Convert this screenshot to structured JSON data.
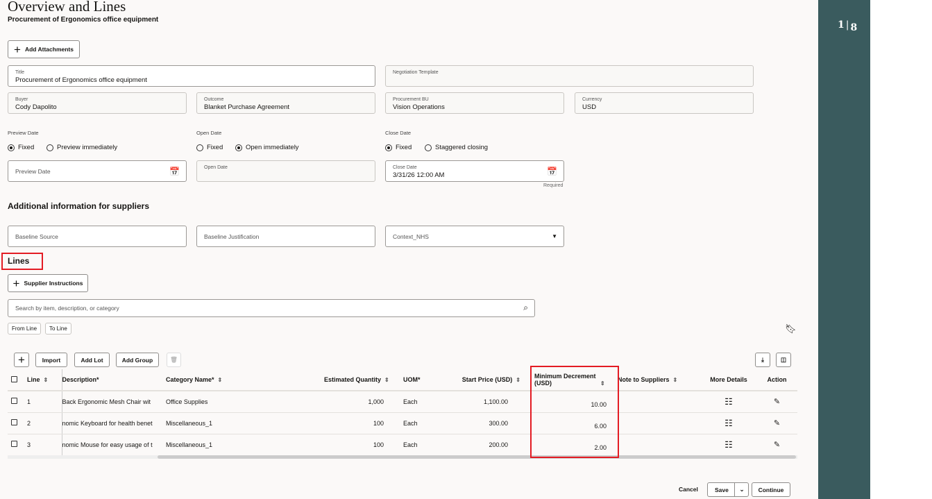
{
  "header": {
    "title": "Overview and Lines",
    "subtitle": "Procurement of Ergonomics office equipment"
  },
  "buttons": {
    "add_attachments": "Add Attachments",
    "supplier_instructions": "Supplier Instructions",
    "from_line": "From Line",
    "to_line": "To Line",
    "import": "Import",
    "add_lot": "Add Lot",
    "add_group": "Add Group",
    "cancel": "Cancel",
    "save": "Save",
    "continue": "Continue"
  },
  "fields": {
    "title": {
      "label": "Title",
      "value": "Procurement of Ergonomics office equipment"
    },
    "negotiation_template": {
      "label": "Negotiation Template",
      "value": ""
    },
    "buyer": {
      "label": "Buyer",
      "value": "Cody Dapolito"
    },
    "outcome": {
      "label": "Outcome",
      "value": "Blanket Purchase Agreement"
    },
    "procurement_bu": {
      "label": "Procurement BU",
      "value": "Vision Operations"
    },
    "currency": {
      "label": "Currency",
      "value": "USD"
    }
  },
  "dates": {
    "preview": {
      "label": "Preview Date",
      "options": [
        "Fixed",
        "Preview immediately"
      ],
      "selected": "Fixed",
      "field_placeholder": "Preview Date"
    },
    "open": {
      "label": "Open Date",
      "options": [
        "Fixed",
        "Open immediately"
      ],
      "selected": "Open immediately",
      "field_label": "Open Date"
    },
    "close": {
      "label": "Close Date",
      "options": [
        "Fixed",
        "Staggered closing"
      ],
      "selected": "Fixed",
      "field_label": "Close Date",
      "value": "3/31/26 12:00 AM",
      "helper": "Required"
    }
  },
  "additional": {
    "heading": "Additional information for suppliers",
    "baseline_source": "Baseline Source",
    "baseline_justification": "Baseline Justification",
    "context": "Context_NHS"
  },
  "lines": {
    "heading": "Lines",
    "search_placeholder": "Search by item, description, or category",
    "columns": [
      "Line",
      "Description*",
      "Category Name*",
      "Estimated Quantity",
      "UOM*",
      "Start Price (USD)",
      "Minimum Decrement (USD)",
      "Note to Suppliers",
      "More Details",
      "Action"
    ],
    "rows": [
      {
        "line": "1",
        "description": " Back Ergonomic Mesh Chair wit",
        "category": "Office Supplies",
        "qty": "1,000",
        "uom": "Each",
        "start_price": "1,100.00",
        "min_decrement": "10.00",
        "note": ""
      },
      {
        "line": "2",
        "description": "nomic Keyboard for health benet",
        "category": "Miscellaneous_1",
        "qty": "100",
        "uom": "Each",
        "start_price": "300.00",
        "min_decrement": "6.00",
        "note": ""
      },
      {
        "line": "3",
        "description": "nomic Mouse for easy usage of t",
        "category": "Miscellaneous_1",
        "qty": "100",
        "uom": "Each",
        "start_price": "200.00",
        "min_decrement": "2.00",
        "note": ""
      }
    ]
  },
  "side_panel": {
    "current": "1",
    "total": "8"
  },
  "colors": {
    "side_panel": "#3a5b5e",
    "highlight": "#e31b23"
  }
}
